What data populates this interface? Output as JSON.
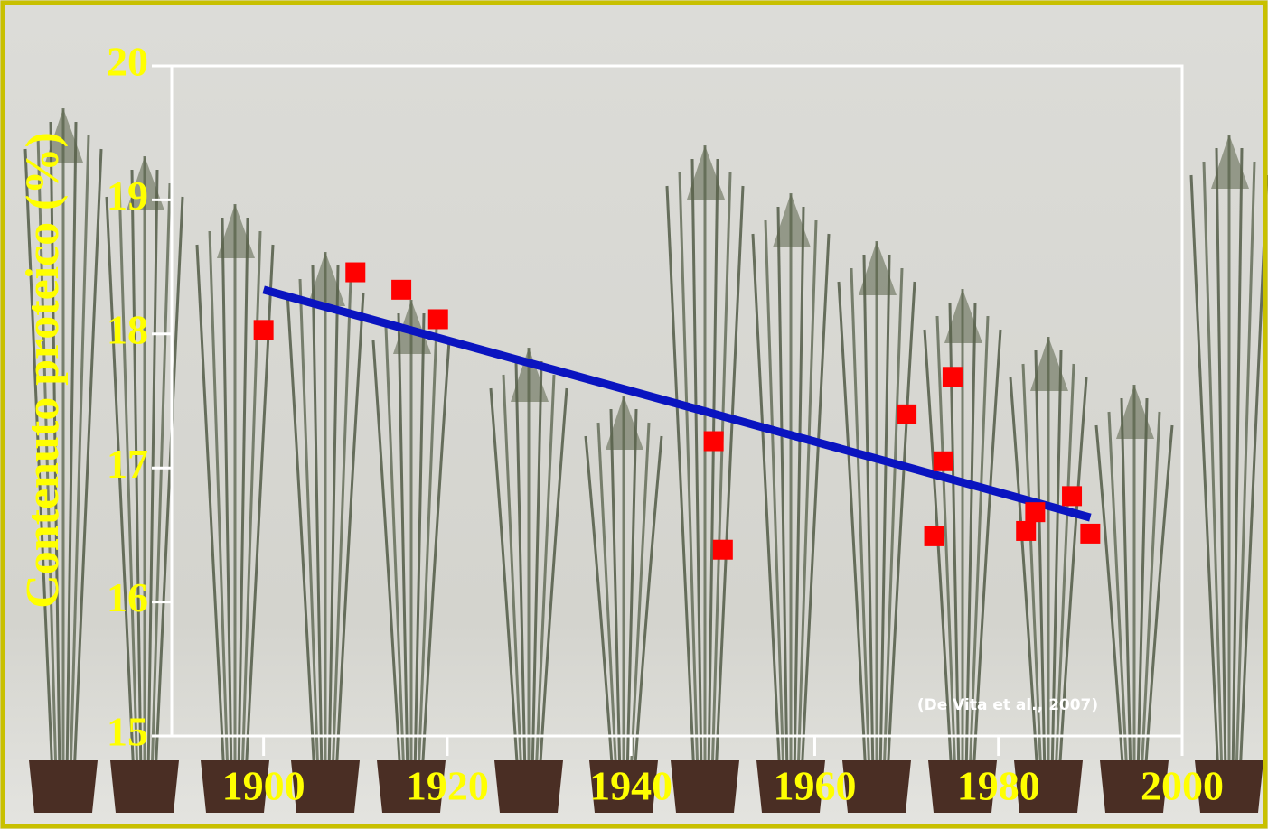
{
  "chart_data": {
    "type": "scatter",
    "y_label": "Contenuto proteico (%)",
    "annotation": "(De Vita et al., 2007)",
    "xlim": [
      1890,
      2000
    ],
    "xticks": [
      1900,
      1920,
      1940,
      1960,
      1980,
      2000
    ],
    "ylim": [
      15,
      20
    ],
    "yticks": [
      15,
      16,
      17,
      18,
      19,
      20
    ],
    "series": [
      {
        "type": "scatter",
        "color": "#ff0000",
        "x": [
          1900,
          1910,
          1915,
          1919,
          1949,
          1950,
          1970,
          1975,
          1974,
          1973,
          1983,
          1984,
          1988,
          1990
        ],
        "values": [
          18.03,
          18.46,
          18.33,
          18.11,
          17.2,
          16.39,
          17.4,
          17.68,
          17.05,
          16.49,
          16.53,
          16.67,
          16.79,
          16.51
        ]
      },
      {
        "type": "line",
        "color": "#0a14c0",
        "x": [
          1900,
          1990
        ],
        "values": [
          18.33,
          16.63
        ]
      }
    ]
  }
}
